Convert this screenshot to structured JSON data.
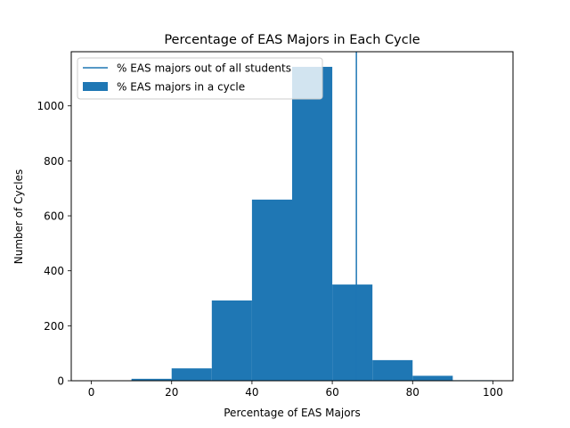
{
  "chart_data": {
    "type": "bar",
    "title": "Percentage of EAS Majors in Each Cycle",
    "xlabel": "Percentage of EAS Majors",
    "ylabel": "Number of Cycles",
    "xlim": [
      -5,
      105
    ],
    "ylim": [
      0,
      1197
    ],
    "x_ticks": [
      0,
      20,
      40,
      60,
      80,
      100
    ],
    "y_ticks": [
      0,
      200,
      400,
      600,
      800,
      1000
    ],
    "grid": false,
    "legend_position": "top-left",
    "bar_color": "#1f77b4",
    "bins": [
      {
        "start": 0,
        "end": 10,
        "count": 0
      },
      {
        "start": 10,
        "end": 20,
        "count": 7
      },
      {
        "start": 20,
        "end": 30,
        "count": 45
      },
      {
        "start": 30,
        "end": 40,
        "count": 292
      },
      {
        "start": 40,
        "end": 50,
        "count": 659
      },
      {
        "start": 50,
        "end": 60,
        "count": 1142
      },
      {
        "start": 60,
        "end": 70,
        "count": 350
      },
      {
        "start": 70,
        "end": 80,
        "count": 75
      },
      {
        "start": 80,
        "end": 90,
        "count": 18
      },
      {
        "start": 90,
        "end": 100,
        "count": 2
      }
    ],
    "reference_line": {
      "x": 66
    },
    "legend": [
      {
        "label": "% EAS majors out of all students",
        "kind": "line"
      },
      {
        "label": "% EAS majors in a cycle",
        "kind": "patch"
      }
    ]
  }
}
